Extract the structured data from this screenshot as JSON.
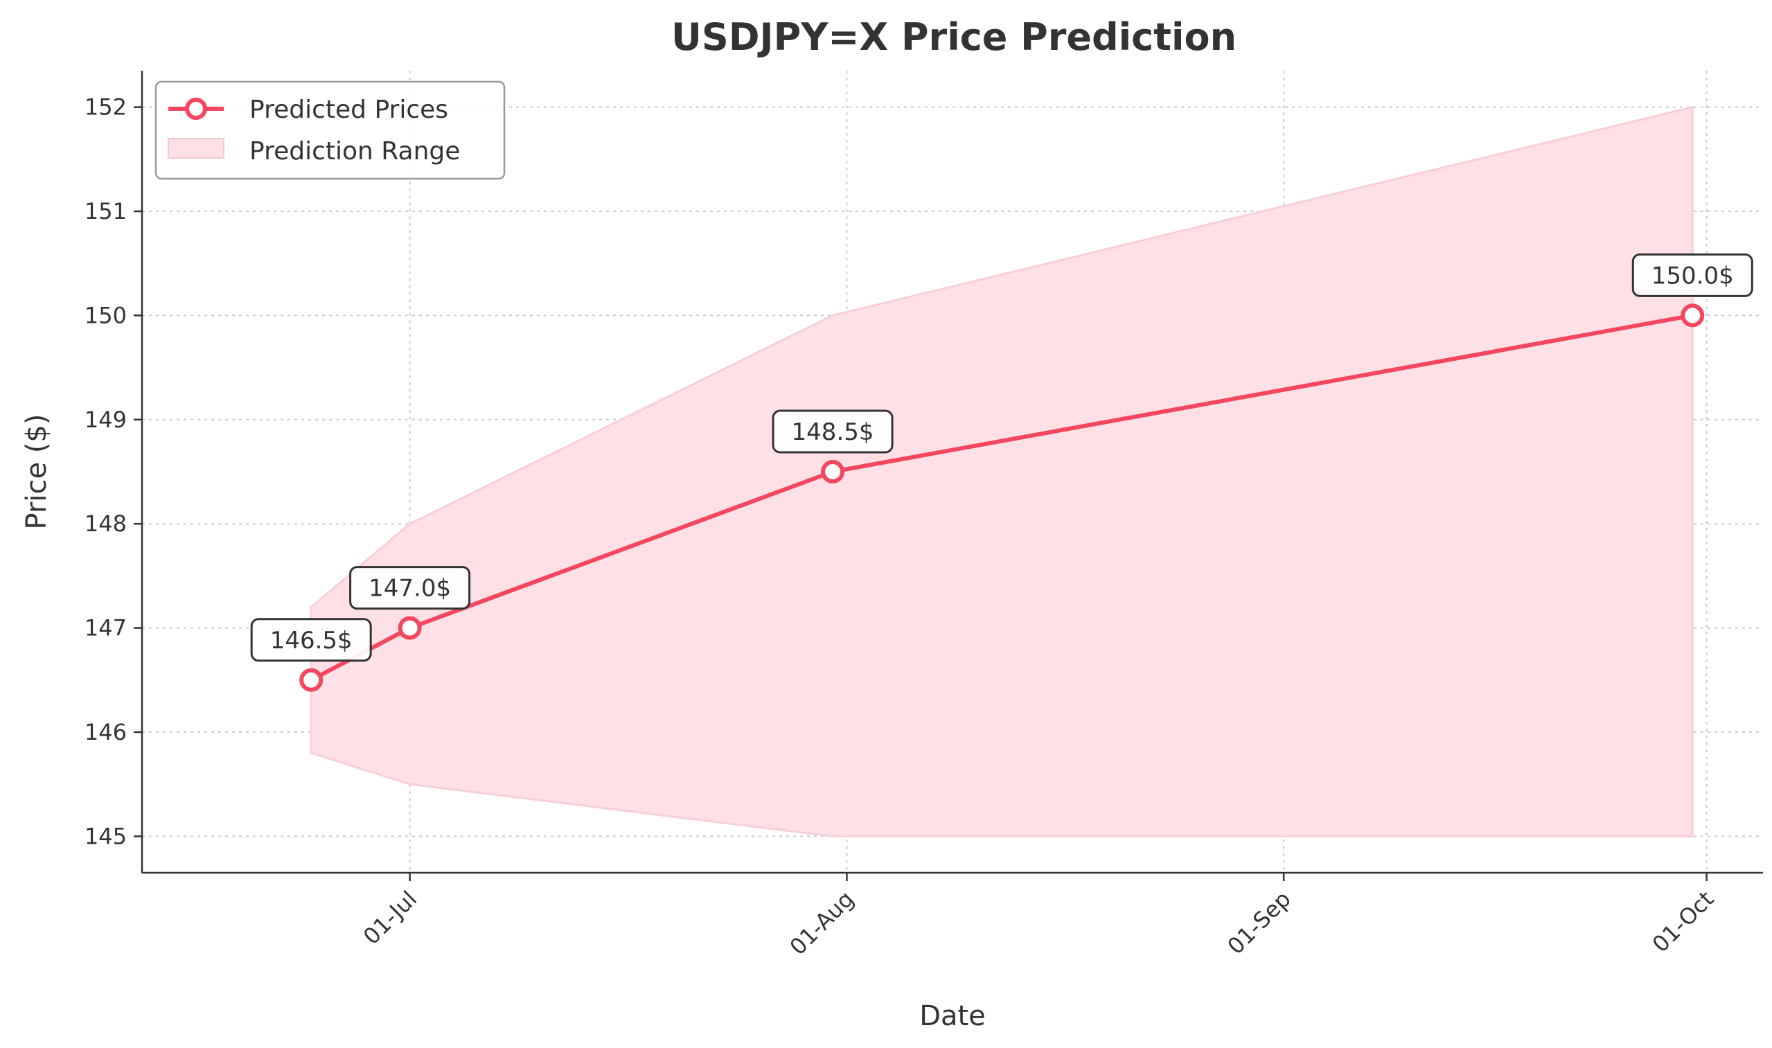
{
  "chart_data": {
    "type": "line",
    "title": "USDJPY=X Price Prediction",
    "xlabel": "Date",
    "ylabel": "Price ($)",
    "x": [
      "2024-06-24",
      "2024-07-01",
      "2024-07-31",
      "2024-09-30"
    ],
    "series": [
      {
        "name": "Predicted Prices",
        "values": [
          146.5,
          147.0,
          148.5,
          150.0
        ],
        "color": "#f4475f"
      }
    ],
    "range": {
      "name": "Prediction Range",
      "lower": [
        145.8,
        145.5,
        145.0,
        145.0
      ],
      "upper": [
        147.2,
        148.0,
        150.0,
        152.0
      ],
      "color": "#ffe0e6"
    },
    "data_labels": [
      "146.5$",
      "147.0$",
      "148.5$",
      "150.0$"
    ],
    "xticks": [
      {
        "date": "2024-07-01",
        "label": "01-Jul"
      },
      {
        "date": "2024-08-01",
        "label": "01-Aug"
      },
      {
        "date": "2024-09-01",
        "label": "01-Sep"
      },
      {
        "date": "2024-10-01",
        "label": "01-Oct"
      }
    ],
    "yticks": [
      145,
      146,
      147,
      148,
      149,
      150,
      151,
      152
    ],
    "xlim": [
      "2024-06-12",
      "2024-10-05"
    ],
    "ylim": [
      144.65,
      152.35
    ],
    "grid": true,
    "legend_position": "top-left"
  }
}
